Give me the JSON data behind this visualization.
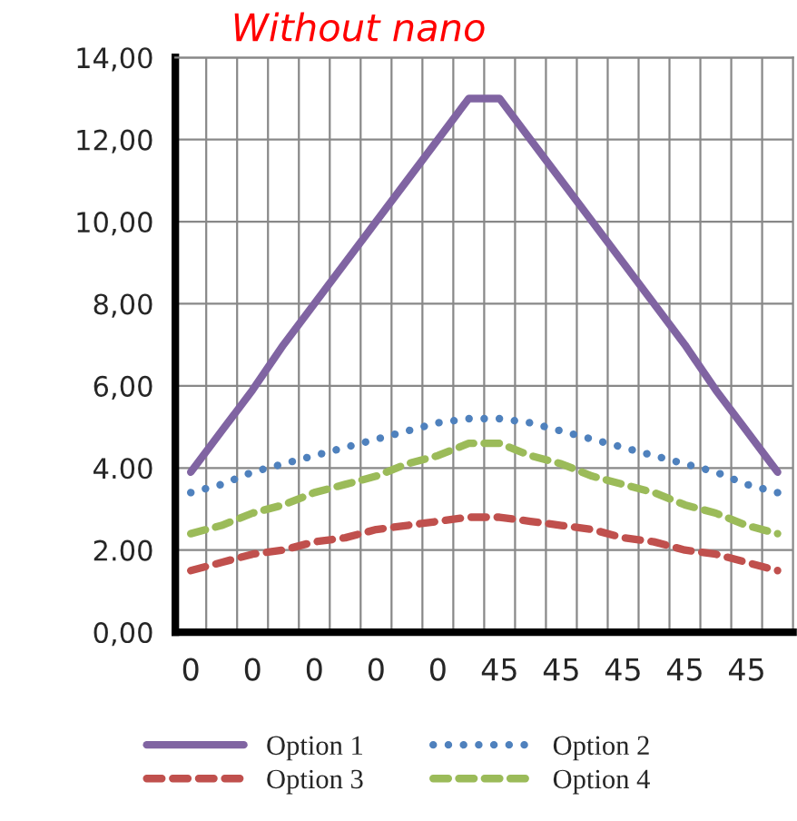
{
  "chart_data": {
    "type": "line",
    "title": "Without nano",
    "categories": [
      "0",
      null,
      "0",
      null,
      "0",
      null,
      "0",
      null,
      "0",
      null,
      "45",
      null,
      "45",
      null,
      "45",
      null,
      "45",
      null,
      "45",
      null
    ],
    "series": [
      {
        "name": "Option 1",
        "color": "#8064a2",
        "line_style": "solid",
        "values": [
          3.9,
          4.9,
          5.9,
          7.0,
          8.0,
          9.0,
          10.0,
          11.0,
          12.0,
          13.0,
          13.0,
          12.0,
          11.0,
          10.0,
          9.0,
          8.0,
          7.0,
          5.9,
          4.9,
          3.9
        ]
      },
      {
        "name": "Option 2",
        "color": "#4f81bd",
        "line_style": "dotted",
        "values": [
          3.4,
          3.6,
          3.9,
          4.1,
          4.3,
          4.5,
          4.7,
          4.9,
          5.1,
          5.2,
          5.2,
          5.1,
          4.9,
          4.7,
          4.5,
          4.3,
          4.1,
          3.9,
          3.6,
          3.4
        ]
      },
      {
        "name": "Option 3",
        "color": "#c0504d",
        "line_style": "dashed",
        "values": [
          1.5,
          1.7,
          1.9,
          2.0,
          2.2,
          2.3,
          2.5,
          2.6,
          2.7,
          2.8,
          2.8,
          2.7,
          2.6,
          2.5,
          2.3,
          2.2,
          2.0,
          1.9,
          1.7,
          1.5
        ]
      },
      {
        "name": "Option 4",
        "color": "#9bbb59",
        "line_style": "dashed",
        "values": [
          2.4,
          2.6,
          2.9,
          3.1,
          3.4,
          3.6,
          3.8,
          4.1,
          4.3,
          4.6,
          4.6,
          4.3,
          4.1,
          3.8,
          3.6,
          3.4,
          3.1,
          2.9,
          2.6,
          2.4
        ]
      }
    ],
    "ylim": [
      0,
      14
    ],
    "yticks": [
      {
        "value": 0,
        "label": "0,00"
      },
      {
        "value": 2,
        "label": "2.00"
      },
      {
        "value": 4,
        "label": "4.00"
      },
      {
        "value": 6,
        "label": "6,00"
      },
      {
        "value": 8,
        "label": "8,00"
      },
      {
        "value": 10,
        "label": "10,00"
      },
      {
        "value": 12,
        "label": "12,00"
      },
      {
        "value": 14,
        "label": "14,00"
      }
    ],
    "grid": true,
    "legend": "bottom",
    "marker": "none"
  }
}
